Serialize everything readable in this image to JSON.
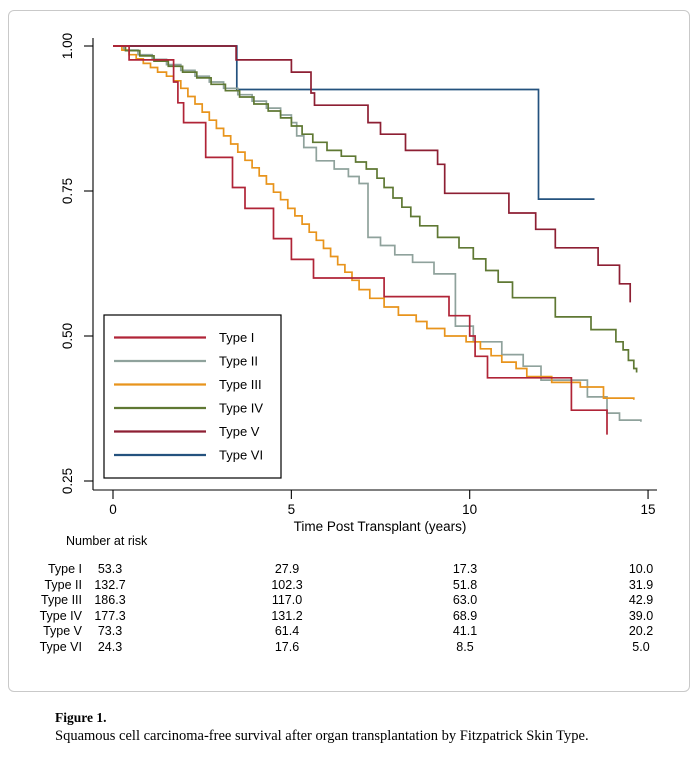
{
  "figure": {
    "caption_label": "Figure 1.",
    "caption_text": "Squamous cell carcinoma-free survival after organ transplantation by Fitzpatrick Skin Type."
  },
  "chart_data": {
    "type": "line",
    "subtype": "kaplan-meier-step",
    "title": "",
    "xlabel": "Time Post Transplant (years)",
    "ylabel": "",
    "xlim": [
      0,
      15.8
    ],
    "ylim": [
      0.22,
      1.02
    ],
    "grid": false,
    "legend_position": "lower-left-inside",
    "x_ticks": [
      {
        "label": "0",
        "value": 0
      },
      {
        "label": "5",
        "value": 5
      },
      {
        "label": "10",
        "value": 10
      },
      {
        "label": "15",
        "value": 15
      }
    ],
    "y_ticks": [
      {
        "label": "1.00",
        "value": 1.0
      },
      {
        "label": "0.75",
        "value": 0.75
      },
      {
        "label": "0.50",
        "value": 0.5
      },
      {
        "label": "0.25",
        "value": 0.25
      }
    ],
    "draw_order": [
      "Type VI",
      "Type II",
      "Type III",
      "Type IV",
      "Type V",
      "Type I"
    ],
    "series": [
      {
        "name": "Type I",
        "color": "#b02437",
        "steps": [
          [
            0,
            1
          ],
          [
            0.45,
            0.976
          ],
          [
            1.7,
            0.938
          ],
          [
            1.82,
            0.902
          ],
          [
            1.98,
            0.868
          ],
          [
            2.6,
            0.808
          ],
          [
            3.35,
            0.756
          ],
          [
            3.7,
            0.72
          ],
          [
            4.5,
            0.668
          ],
          [
            5.0,
            0.632
          ],
          [
            5.62,
            0.6
          ],
          [
            7.6,
            0.568
          ],
          [
            9.42,
            0.535
          ],
          [
            10.0,
            0.5
          ],
          [
            10.15,
            0.465
          ],
          [
            10.5,
            0.428
          ],
          [
            12.85,
            0.372
          ],
          [
            13.85,
            0.33
          ]
        ]
      },
      {
        "name": "Type II",
        "color": "#8fa29c",
        "steps": [
          [
            0,
            1
          ],
          [
            0.3,
            0.993
          ],
          [
            0.7,
            0.985
          ],
          [
            1.1,
            0.977
          ],
          [
            1.5,
            0.968
          ],
          [
            1.9,
            0.958
          ],
          [
            2.3,
            0.948
          ],
          [
            2.7,
            0.938
          ],
          [
            3.1,
            0.927
          ],
          [
            3.5,
            0.916
          ],
          [
            3.9,
            0.905
          ],
          [
            4.3,
            0.893
          ],
          [
            4.7,
            0.881
          ],
          [
            5.0,
            0.868
          ],
          [
            5.15,
            0.845
          ],
          [
            5.35,
            0.825
          ],
          [
            5.7,
            0.802
          ],
          [
            6.2,
            0.788
          ],
          [
            6.6,
            0.775
          ],
          [
            6.9,
            0.763
          ],
          [
            7.15,
            0.67
          ],
          [
            7.5,
            0.656
          ],
          [
            7.9,
            0.64
          ],
          [
            8.4,
            0.627
          ],
          [
            9.0,
            0.607
          ],
          [
            9.6,
            0.517
          ],
          [
            10.1,
            0.49
          ],
          [
            10.9,
            0.468
          ],
          [
            11.5,
            0.448
          ],
          [
            12.0,
            0.424
          ],
          [
            13.3,
            0.395
          ],
          [
            13.85,
            0.367
          ],
          [
            14.2,
            0.355
          ],
          [
            14.8,
            0.352
          ]
        ]
      },
      {
        "name": "Type III",
        "color": "#e8941c",
        "steps": [
          [
            0,
            1
          ],
          [
            0.25,
            0.993
          ],
          [
            0.45,
            0.985
          ],
          [
            0.65,
            0.978
          ],
          [
            0.85,
            0.97
          ],
          [
            1.05,
            0.963
          ],
          [
            1.25,
            0.955
          ],
          [
            1.5,
            0.948
          ],
          [
            1.7,
            0.94
          ],
          [
            1.9,
            0.927
          ],
          [
            2.1,
            0.913
          ],
          [
            2.3,
            0.9
          ],
          [
            2.5,
            0.886
          ],
          [
            2.7,
            0.872
          ],
          [
            2.9,
            0.858
          ],
          [
            3.1,
            0.845
          ],
          [
            3.3,
            0.831
          ],
          [
            3.5,
            0.817
          ],
          [
            3.7,
            0.803
          ],
          [
            3.9,
            0.79
          ],
          [
            4.1,
            0.776
          ],
          [
            4.3,
            0.762
          ],
          [
            4.5,
            0.748
          ],
          [
            4.7,
            0.735
          ],
          [
            4.9,
            0.72
          ],
          [
            5.1,
            0.707
          ],
          [
            5.3,
            0.693
          ],
          [
            5.5,
            0.679
          ],
          [
            5.7,
            0.665
          ],
          [
            5.9,
            0.651
          ],
          [
            6.1,
            0.637
          ],
          [
            6.3,
            0.623
          ],
          [
            6.5,
            0.61
          ],
          [
            6.7,
            0.596
          ],
          [
            6.9,
            0.58
          ],
          [
            7.2,
            0.565
          ],
          [
            7.6,
            0.55
          ],
          [
            8.0,
            0.536
          ],
          [
            8.5,
            0.525
          ],
          [
            8.8,
            0.513
          ],
          [
            9.3,
            0.5
          ],
          [
            9.9,
            0.49
          ],
          [
            10.3,
            0.478
          ],
          [
            10.6,
            0.466
          ],
          [
            10.9,
            0.455
          ],
          [
            11.3,
            0.444
          ],
          [
            11.6,
            0.43
          ],
          [
            12.3,
            0.42
          ],
          [
            13.1,
            0.412
          ],
          [
            13.75,
            0.393
          ],
          [
            14.6,
            0.39
          ]
        ]
      },
      {
        "name": "Type IV",
        "color": "#5f7833",
        "steps": [
          [
            0,
            1
          ],
          [
            0.35,
            0.992
          ],
          [
            0.75,
            0.983
          ],
          [
            1.15,
            0.974
          ],
          [
            1.55,
            0.965
          ],
          [
            1.95,
            0.955
          ],
          [
            2.35,
            0.945
          ],
          [
            2.75,
            0.934
          ],
          [
            3.15,
            0.923
          ],
          [
            3.55,
            0.912
          ],
          [
            3.95,
            0.9
          ],
          [
            4.35,
            0.888
          ],
          [
            4.7,
            0.876
          ],
          [
            5.0,
            0.862
          ],
          [
            5.3,
            0.848
          ],
          [
            5.6,
            0.834
          ],
          [
            6.0,
            0.82
          ],
          [
            6.4,
            0.81
          ],
          [
            6.8,
            0.8
          ],
          [
            7.1,
            0.788
          ],
          [
            7.4,
            0.772
          ],
          [
            7.6,
            0.756
          ],
          [
            7.85,
            0.738
          ],
          [
            8.1,
            0.722
          ],
          [
            8.35,
            0.706
          ],
          [
            8.6,
            0.69
          ],
          [
            9.1,
            0.67
          ],
          [
            9.7,
            0.652
          ],
          [
            10.1,
            0.633
          ],
          [
            10.45,
            0.613
          ],
          [
            10.8,
            0.593
          ],
          [
            11.2,
            0.566
          ],
          [
            12.4,
            0.533
          ],
          [
            13.4,
            0.511
          ],
          [
            14.1,
            0.49
          ],
          [
            14.3,
            0.476
          ],
          [
            14.45,
            0.458
          ],
          [
            14.6,
            0.444
          ],
          [
            14.68,
            0.437
          ]
        ]
      },
      {
        "name": "Type V",
        "color": "#8d1f33",
        "steps": [
          [
            0,
            1
          ],
          [
            3.45,
            0.976
          ],
          [
            5.0,
            0.955
          ],
          [
            5.55,
            0.919
          ],
          [
            5.65,
            0.898
          ],
          [
            7.15,
            0.868
          ],
          [
            7.5,
            0.848
          ],
          [
            8.2,
            0.82
          ],
          [
            9.1,
            0.796
          ],
          [
            9.3,
            0.746
          ],
          [
            11.1,
            0.712
          ],
          [
            11.85,
            0.684
          ],
          [
            12.4,
            0.652
          ],
          [
            13.6,
            0.622
          ],
          [
            14.2,
            0.59
          ],
          [
            14.5,
            0.558
          ]
        ]
      },
      {
        "name": "Type VI",
        "color": "#24527e",
        "steps": [
          [
            0,
            1
          ],
          [
            3.47,
            0.925
          ],
          [
            11.93,
            0.736
          ],
          [
            13.5,
            0.736
          ]
        ]
      }
    ],
    "number_at_risk": {
      "title": "Number at risk",
      "times": [
        0,
        5,
        10,
        15
      ],
      "rows": [
        {
          "label": "Type I",
          "values": [
            "53.3",
            "27.9",
            "17.3",
            "10.0"
          ]
        },
        {
          "label": "Type II",
          "values": [
            "132.7",
            "102.3",
            "51.8",
            "31.9"
          ]
        },
        {
          "label": "Type III",
          "values": [
            "186.3",
            "117.0",
            "63.0",
            "42.9"
          ]
        },
        {
          "label": "Type IV",
          "values": [
            "177.3",
            "131.2",
            "68.9",
            "39.0"
          ]
        },
        {
          "label": "Type V",
          "values": [
            "73.3",
            "61.4",
            "41.1",
            "20.2"
          ]
        },
        {
          "label": "Type VI",
          "values": [
            "24.3",
            "17.6",
            "8.5",
            "5.0"
          ]
        }
      ]
    }
  }
}
